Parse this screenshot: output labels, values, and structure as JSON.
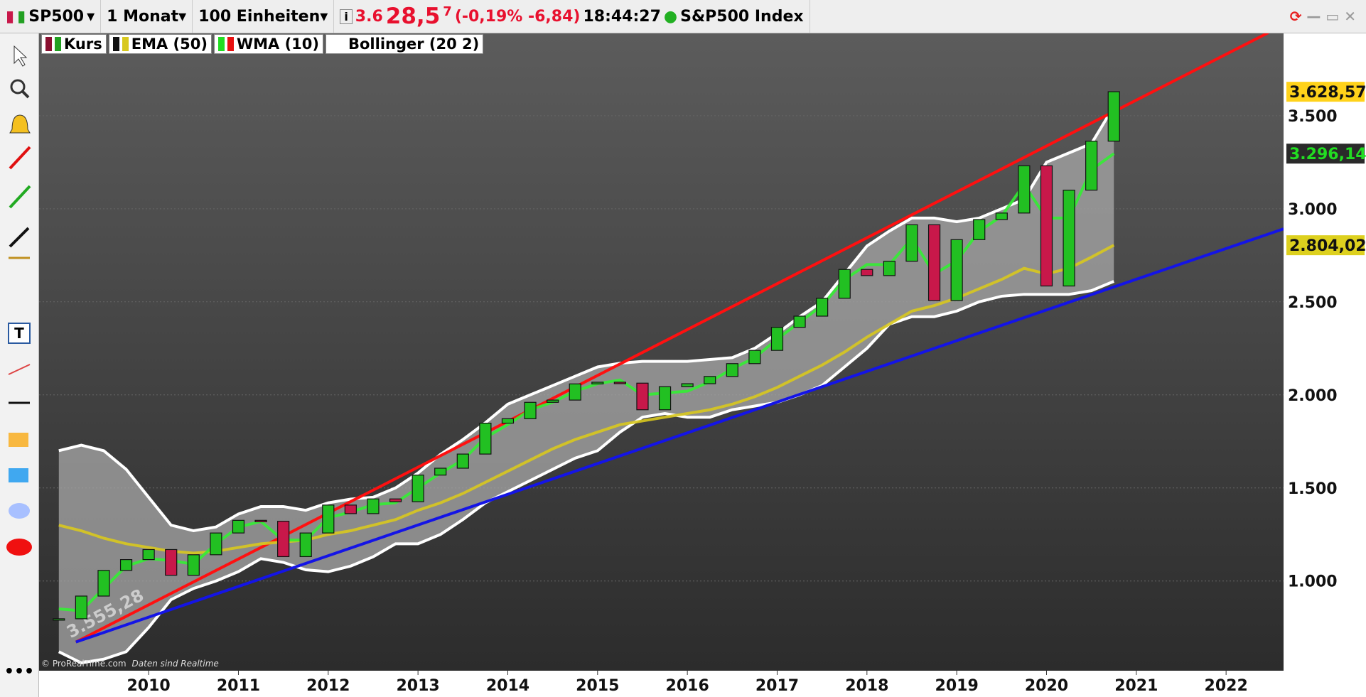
{
  "toolbar": {
    "symbol": "SP500",
    "period": "1 Monat",
    "units": "100 Einheiten",
    "price_parts": [
      "3.6",
      "28,5",
      "7"
    ],
    "change": "(-0,19% -6,84)",
    "time": "18:44:27",
    "name": "S&P500 Index"
  },
  "footer": {
    "copyright": "© ProRealTime.com",
    "note": "Daten sind Realtime"
  },
  "chart_data": {
    "type": "candlestick",
    "x": [
      2009,
      2009.25,
      2009.5,
      2009.75,
      2010,
      2010.25,
      2010.5,
      2010.75,
      2011,
      2011.25,
      2011.5,
      2011.75,
      2012,
      2012.25,
      2012.5,
      2012.75,
      2013,
      2013.25,
      2013.5,
      2013.75,
      2014,
      2014.25,
      2014.5,
      2014.75,
      2015,
      2015.25,
      2015.5,
      2015.75,
      2016,
      2016.25,
      2016.5,
      2016.75,
      2017,
      2017.25,
      2017.5,
      2017.75,
      2018,
      2018.25,
      2018.5,
      2018.75,
      2019,
      2019.25,
      2019.5,
      2019.75,
      2020,
      2020.25,
      2020.5,
      2020.75
    ],
    "xlim": [
      2008.78,
      2022.64
    ],
    "xticks": [
      2010,
      2011,
      2012,
      2013,
      2014,
      2015,
      2016,
      2017,
      2018,
      2019,
      2020,
      2021,
      2022
    ],
    "ylim": [
      518,
      3946
    ],
    "yticks": [
      {
        "value": 1000,
        "label": "1.000"
      },
      {
        "value": 1500,
        "label": "1.500"
      },
      {
        "value": 2000,
        "label": "2.000"
      },
      {
        "value": 2500,
        "label": "2.500"
      },
      {
        "value": 3000,
        "label": "3.000"
      },
      {
        "value": 3500,
        "label": "3.500"
      }
    ],
    "grid": true,
    "series": [
      {
        "name": "Kurs",
        "color": "#22c022",
        "down_color": "#c8184a",
        "values": [
          797,
          919,
          1057,
          1115,
          1169,
          1031,
          1141,
          1258,
          1326,
          1321,
          1131,
          1258,
          1408,
          1362,
          1441,
          1426,
          1569,
          1606,
          1682,
          1848,
          1872,
          1960,
          1972,
          2059,
          2068,
          2063,
          1920,
          2044,
          2060,
          2099,
          2168,
          2239,
          2363,
          2423,
          2519,
          2674,
          2641,
          2718,
          2914,
          2507,
          2834,
          2942,
          2977,
          3231,
          2585,
          3100,
          3363,
          3629
        ]
      },
      {
        "name": "EMA (50)",
        "color": "#d8c81e",
        "values": [
          1300,
          1270,
          1230,
          1200,
          1180,
          1160,
          1150,
          1160,
          1180,
          1200,
          1210,
          1220,
          1250,
          1270,
          1300,
          1330,
          1380,
          1420,
          1470,
          1530,
          1590,
          1650,
          1710,
          1760,
          1800,
          1840,
          1860,
          1880,
          1900,
          1920,
          1950,
          1990,
          2040,
          2100,
          2160,
          2230,
          2310,
          2380,
          2450,
          2480,
          2520,
          2570,
          2620,
          2680,
          2650,
          2680,
          2740,
          2804
        ]
      },
      {
        "name": "WMA (10)",
        "color": "#33ee33",
        "values": [
          850,
          840,
          960,
          1080,
          1120,
          1110,
          1090,
          1200,
          1290,
          1320,
          1220,
          1220,
          1340,
          1370,
          1410,
          1420,
          1500,
          1580,
          1650,
          1770,
          1840,
          1920,
          1960,
          2020,
          2060,
          2080,
          2000,
          2010,
          2020,
          2070,
          2140,
          2200,
          2300,
          2390,
          2480,
          2620,
          2700,
          2700,
          2840,
          2650,
          2720,
          2880,
          2960,
          3130,
          2950,
          2950,
          3210,
          3296.14
        ]
      },
      {
        "name": "Bollinger (20 2)",
        "color": "#ffffff",
        "upper": [
          1700,
          1730,
          1700,
          1600,
          1450,
          1300,
          1270,
          1290,
          1360,
          1400,
          1400,
          1380,
          1420,
          1440,
          1450,
          1500,
          1580,
          1680,
          1760,
          1850,
          1950,
          2000,
          2050,
          2100,
          2150,
          2170,
          2180,
          2180,
          2180,
          2190,
          2200,
          2250,
          2330,
          2420,
          2500,
          2650,
          2800,
          2880,
          2950,
          2950,
          2930,
          2950,
          3000,
          3050,
          3250,
          3300,
          3350,
          3550
        ],
        "lower": [
          620,
          560,
          580,
          620,
          750,
          900,
          960,
          1000,
          1050,
          1120,
          1100,
          1060,
          1050,
          1080,
          1130,
          1200,
          1200,
          1250,
          1330,
          1420,
          1480,
          1540,
          1600,
          1660,
          1700,
          1800,
          1880,
          1900,
          1880,
          1880,
          1920,
          1940,
          1960,
          2000,
          2050,
          2150,
          2250,
          2380,
          2420,
          2420,
          2450,
          2500,
          2530,
          2540,
          2540,
          2540,
          2560,
          2610
        ]
      }
    ],
    "trendlines": [
      {
        "color": "#ff1010",
        "x": [
          2009.19,
          2022.47
        ],
        "values": [
          672,
          3946
        ]
      },
      {
        "color": "#1414e6",
        "x": [
          2009.19,
          2022.64
        ],
        "values": [
          672,
          2892
        ]
      }
    ],
    "trend_label": "3.555,28",
    "price_tags": [
      {
        "value": 3628.57,
        "label": "3.628,57",
        "color": "#ffd21a"
      },
      {
        "value": 3296.14,
        "label": "3.296,14",
        "color": "#22dd22"
      },
      {
        "value": 2804.02,
        "label": "2.804,02",
        "color": "#ddd01e"
      }
    ]
  }
}
